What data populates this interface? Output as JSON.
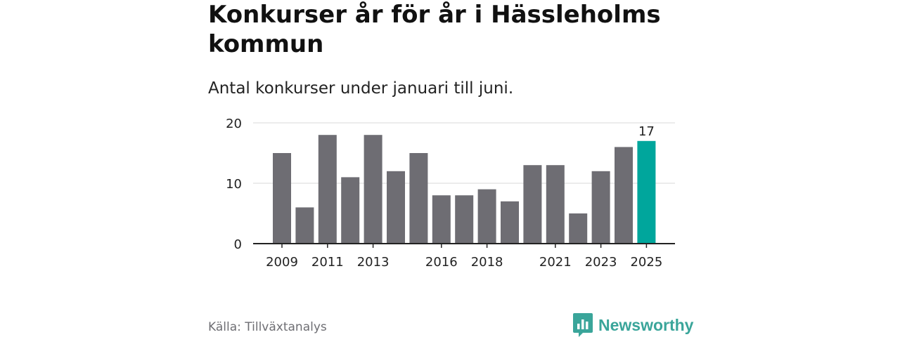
{
  "title": "Konkurser år för år i Hässleholms kommun",
  "subtitle": "Antal konkurser under januari till juni.",
  "source": "Källa: Tillväxtanalys",
  "brand": {
    "name": "Newsworthy",
    "color": "#3aa59a"
  },
  "chart_data": {
    "type": "bar",
    "categories": [
      "2009",
      "2010",
      "2011",
      "2012",
      "2013",
      "2014",
      "2015",
      "2016",
      "2017",
      "2018",
      "2019",
      "2020",
      "2021",
      "2022",
      "2023",
      "2024",
      "2025"
    ],
    "values": [
      15,
      6,
      18,
      11,
      18,
      12,
      15,
      8,
      8,
      9,
      7,
      13,
      13,
      5,
      12,
      16,
      17
    ],
    "x_tick_labels": [
      "2009",
      "2011",
      "2013",
      "2016",
      "2018",
      "2021",
      "2023",
      "2025"
    ],
    "y_ticks": [
      0,
      10,
      20
    ],
    "ylim": [
      0,
      20
    ],
    "grid": true,
    "bar_color": "#6e6d73",
    "highlight_color": "#00a69c",
    "highlight_category": "2025",
    "data_labels": [
      {
        "category": "2025",
        "text": "17"
      }
    ]
  }
}
